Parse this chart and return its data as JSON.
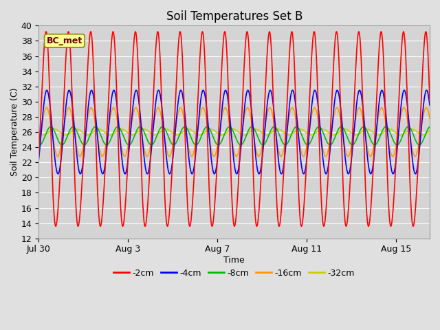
{
  "title": "Soil Temperatures Set B",
  "xlabel": "Time",
  "ylabel": "Soil Temperature (C)",
  "ylim": [
    12,
    40
  ],
  "yticks": [
    12,
    14,
    16,
    18,
    20,
    22,
    24,
    26,
    28,
    30,
    32,
    34,
    36,
    38,
    40
  ],
  "fig_bg_color": "#e0e0e0",
  "plot_bg_color": "#d4d4d4",
  "annotation_text": "BC_met",
  "annotation_bg": "#ffff99",
  "annotation_border": "#888800",
  "legend_colors": [
    "#ff0000",
    "#0000ff",
    "#00bb00",
    "#ff9900",
    "#cccc00"
  ],
  "legend_labels": [
    "-2cm",
    "-4cm",
    "-8cm",
    "-16cm",
    "-32cm"
  ],
  "xtick_dates": [
    "Jul 30",
    "Aug 3",
    "Aug 7",
    "Aug 11",
    "Aug 15"
  ],
  "xtick_offsets_days": [
    0,
    4,
    8,
    12,
    16
  ],
  "xlim_days": [
    0,
    17.5
  ],
  "num_days": 17.5,
  "points_per_day": 96
}
